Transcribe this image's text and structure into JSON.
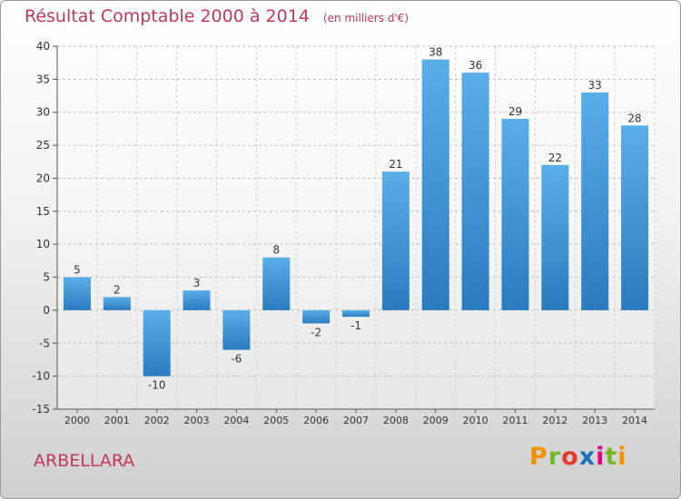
{
  "chart_data": {
    "type": "bar",
    "title": "Résultat Comptable 2000 à 2014",
    "unit": "(en milliers d'€)",
    "categories": [
      "2000",
      "2001",
      "2002",
      "2003",
      "2004",
      "2005",
      "2006",
      "2007",
      "2008",
      "2009",
      "2010",
      "2011",
      "2012",
      "2013",
      "2014"
    ],
    "values": [
      5,
      2,
      -10,
      3,
      -6,
      8,
      -2,
      -1,
      21,
      38,
      36,
      29,
      22,
      33,
      28
    ],
    "data_labels": [
      "5",
      "2",
      "-10",
      "3",
      "-6",
      "8",
      "-2",
      "-1",
      "21",
      "38",
      "36",
      "29",
      "22",
      "33",
      "28"
    ],
    "ylim": [
      -15,
      40
    ],
    "yticks": [
      -15,
      -10,
      -5,
      0,
      5,
      10,
      15,
      20,
      25,
      30,
      35,
      40
    ],
    "grid": "horizontal dashed",
    "xlabel": "",
    "ylabel": ""
  },
  "commune": "ARBELLARA",
  "brand": {
    "letters": [
      "P",
      "r",
      "o",
      "x",
      "i",
      "t",
      "i"
    ],
    "colors": [
      "#f39200",
      "#76b82a",
      "#e53a2f",
      "#1d71b8",
      "#e6007e",
      "#76b82a",
      "#f39200"
    ]
  },
  "colors": {
    "bar_top": "#5aaee8",
    "bar_bottom": "#2b7bbf",
    "title": "#c0395a"
  }
}
